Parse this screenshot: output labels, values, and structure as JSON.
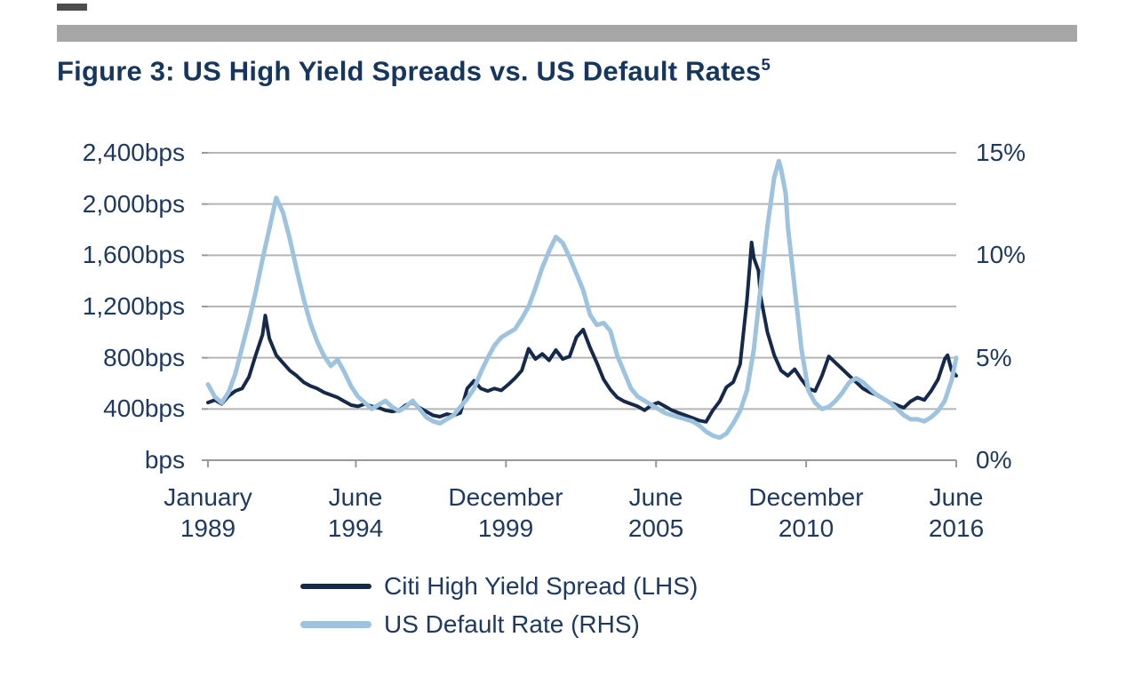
{
  "header": {
    "figure_label": "Figure 3",
    "figure_title_full": "Figure 3: US High Yield Spreads vs. US Default Rates",
    "footnote_marker": "5"
  },
  "legend": {
    "items": [
      {
        "label": "Citi High Yield Spread (LHS)",
        "color": "#15294b"
      },
      {
        "label": "US Default Rate (RHS)",
        "color": "#9dc3de"
      }
    ]
  },
  "chart_data": {
    "type": "line",
    "title": "Figure 3: US High Yield Spreads vs. US Default Rates",
    "title_superscript": "5",
    "grid": "horizontal",
    "legend_position": "bottom",
    "x_domain": [
      1989.0,
      2016.42
    ],
    "x_ticks": [
      {
        "t": 1989.0,
        "line1": "January",
        "line2": "1989"
      },
      {
        "t": 1994.42,
        "line1": "June",
        "line2": "1994"
      },
      {
        "t": 1999.92,
        "line1": "December",
        "line2": "1999"
      },
      {
        "t": 2005.42,
        "line1": "June",
        "line2": "2005"
      },
      {
        "t": 2010.92,
        "line1": "December",
        "line2": "2010"
      },
      {
        "t": 2016.42,
        "line1": "June",
        "line2": "2016"
      }
    ],
    "left_axis": {
      "unit": "bps",
      "min": 0,
      "max": 2400,
      "step": 400,
      "tick_values": [
        2400,
        2000,
        1600,
        1200,
        800,
        400,
        0
      ],
      "tick_labels": [
        "2,400bps",
        "2,000bps",
        "1,600bps",
        "1,200bps",
        "800bps",
        "400bps",
        "bps"
      ]
    },
    "right_axis": {
      "unit": "%",
      "min": 0,
      "max": 15,
      "step": 5,
      "tick_values": [
        15,
        10,
        5,
        0
      ],
      "tick_labels": [
        "15%",
        "10%",
        "5%",
        "0%"
      ]
    },
    "series": [
      {
        "name": "Citi High Yield Spread (LHS)",
        "axis": "left",
        "unit": "bps",
        "color": "#15294b",
        "width": 4,
        "points": [
          [
            1989,
            450
          ],
          [
            1989.25,
            470
          ],
          [
            1989.5,
            440
          ],
          [
            1989.75,
            500
          ],
          [
            1990,
            540
          ],
          [
            1990.25,
            560
          ],
          [
            1990.5,
            650
          ],
          [
            1990.75,
            820
          ],
          [
            1991,
            980
          ],
          [
            1991.1,
            1130
          ],
          [
            1991.25,
            950
          ],
          [
            1991.5,
            820
          ],
          [
            1991.75,
            760
          ],
          [
            1992,
            700
          ],
          [
            1992.25,
            660
          ],
          [
            1992.5,
            610
          ],
          [
            1992.75,
            580
          ],
          [
            1993,
            560
          ],
          [
            1993.25,
            530
          ],
          [
            1993.5,
            510
          ],
          [
            1993.75,
            490
          ],
          [
            1994,
            460
          ],
          [
            1994.25,
            430
          ],
          [
            1994.5,
            420
          ],
          [
            1994.75,
            440
          ],
          [
            1995,
            420
          ],
          [
            1995.25,
            410
          ],
          [
            1995.5,
            390
          ],
          [
            1995.75,
            380
          ],
          [
            1996,
            390
          ],
          [
            1996.25,
            430
          ],
          [
            1996.5,
            450
          ],
          [
            1996.75,
            410
          ],
          [
            1997,
            380
          ],
          [
            1997.25,
            350
          ],
          [
            1997.5,
            340
          ],
          [
            1997.75,
            360
          ],
          [
            1998,
            350
          ],
          [
            1998.25,
            370
          ],
          [
            1998.5,
            560
          ],
          [
            1998.75,
            620
          ],
          [
            1999,
            560
          ],
          [
            1999.25,
            540
          ],
          [
            1999.5,
            560
          ],
          [
            1999.75,
            545
          ],
          [
            2000,
            590
          ],
          [
            2000.25,
            640
          ],
          [
            2000.5,
            700
          ],
          [
            2000.75,
            870
          ],
          [
            2001,
            790
          ],
          [
            2001.25,
            830
          ],
          [
            2001.5,
            780
          ],
          [
            2001.75,
            860
          ],
          [
            2002,
            790
          ],
          [
            2002.25,
            810
          ],
          [
            2002.5,
            960
          ],
          [
            2002.75,
            1020
          ],
          [
            2003,
            880
          ],
          [
            2003.25,
            760
          ],
          [
            2003.5,
            630
          ],
          [
            2003.75,
            550
          ],
          [
            2004,
            490
          ],
          [
            2004.25,
            460
          ],
          [
            2004.5,
            440
          ],
          [
            2004.75,
            420
          ],
          [
            2005,
            390
          ],
          [
            2005.25,
            430
          ],
          [
            2005.5,
            450
          ],
          [
            2005.75,
            420
          ],
          [
            2006,
            390
          ],
          [
            2006.25,
            370
          ],
          [
            2006.5,
            350
          ],
          [
            2006.75,
            330
          ],
          [
            2007,
            310
          ],
          [
            2007.25,
            300
          ],
          [
            2007.5,
            390
          ],
          [
            2007.75,
            460
          ],
          [
            2008,
            570
          ],
          [
            2008.25,
            610
          ],
          [
            2008.5,
            750
          ],
          [
            2008.75,
            1250
          ],
          [
            2008.92,
            1700
          ],
          [
            2009,
            1580
          ],
          [
            2009.17,
            1480
          ],
          [
            2009.25,
            1280
          ],
          [
            2009.5,
            1000
          ],
          [
            2009.75,
            820
          ],
          [
            2010,
            700
          ],
          [
            2010.25,
            660
          ],
          [
            2010.5,
            710
          ],
          [
            2010.75,
            630
          ],
          [
            2011,
            560
          ],
          [
            2011.25,
            540
          ],
          [
            2011.5,
            660
          ],
          [
            2011.75,
            810
          ],
          [
            2012,
            760
          ],
          [
            2012.25,
            710
          ],
          [
            2012.5,
            660
          ],
          [
            2012.75,
            610
          ],
          [
            2013,
            560
          ],
          [
            2013.25,
            530
          ],
          [
            2013.5,
            510
          ],
          [
            2013.75,
            480
          ],
          [
            2014,
            450
          ],
          [
            2014.25,
            430
          ],
          [
            2014.5,
            410
          ],
          [
            2014.75,
            460
          ],
          [
            2015,
            490
          ],
          [
            2015.25,
            470
          ],
          [
            2015.5,
            540
          ],
          [
            2015.75,
            630
          ],
          [
            2016,
            790
          ],
          [
            2016.1,
            820
          ],
          [
            2016.25,
            700
          ],
          [
            2016.42,
            660
          ]
        ]
      },
      {
        "name": "US Default Rate (RHS)",
        "axis": "right",
        "unit": "%",
        "color": "#9dc3de",
        "width": 5,
        "points": [
          [
            1989,
            3.7
          ],
          [
            1989.25,
            3.1
          ],
          [
            1989.5,
            2.8
          ],
          [
            1989.75,
            3.3
          ],
          [
            1990,
            4.2
          ],
          [
            1990.25,
            5.5
          ],
          [
            1990.5,
            6.8
          ],
          [
            1990.75,
            8.2
          ],
          [
            1991,
            9.8
          ],
          [
            1991.25,
            11.3
          ],
          [
            1991.5,
            12.8
          ],
          [
            1991.75,
            12.1
          ],
          [
            1992,
            10.8
          ],
          [
            1992.25,
            9.3
          ],
          [
            1992.5,
            7.9
          ],
          [
            1992.75,
            6.7
          ],
          [
            1993,
            5.8
          ],
          [
            1993.25,
            5.1
          ],
          [
            1993.5,
            4.6
          ],
          [
            1993.75,
            4.9
          ],
          [
            1994,
            4.3
          ],
          [
            1994.25,
            3.6
          ],
          [
            1994.5,
            3.1
          ],
          [
            1994.75,
            2.8
          ],
          [
            1995,
            2.5
          ],
          [
            1995.25,
            2.7
          ],
          [
            1995.5,
            2.9
          ],
          [
            1995.75,
            2.6
          ],
          [
            1996,
            2.4
          ],
          [
            1996.25,
            2.6
          ],
          [
            1996.5,
            2.9
          ],
          [
            1996.75,
            2.5
          ],
          [
            1997,
            2.1
          ],
          [
            1997.25,
            1.9
          ],
          [
            1997.5,
            1.8
          ],
          [
            1997.75,
            2.0
          ],
          [
            1998,
            2.2
          ],
          [
            1998.25,
            2.6
          ],
          [
            1998.5,
            3.0
          ],
          [
            1998.75,
            3.5
          ],
          [
            1999,
            4.3
          ],
          [
            1999.25,
            5.0
          ],
          [
            1999.5,
            5.6
          ],
          [
            1999.75,
            6.0
          ],
          [
            2000,
            6.2
          ],
          [
            2000.25,
            6.4
          ],
          [
            2000.5,
            6.9
          ],
          [
            2000.75,
            7.5
          ],
          [
            2001,
            8.4
          ],
          [
            2001.25,
            9.4
          ],
          [
            2001.5,
            10.2
          ],
          [
            2001.75,
            10.9
          ],
          [
            2002,
            10.6
          ],
          [
            2002.25,
            9.9
          ],
          [
            2002.5,
            9.1
          ],
          [
            2002.75,
            8.3
          ],
          [
            2003,
            7.1
          ],
          [
            2003.25,
            6.6
          ],
          [
            2003.5,
            6.7
          ],
          [
            2003.75,
            6.3
          ],
          [
            2004,
            5.1
          ],
          [
            2004.25,
            4.3
          ],
          [
            2004.5,
            3.5
          ],
          [
            2004.75,
            3.1
          ],
          [
            2005,
            2.9
          ],
          [
            2005.25,
            2.7
          ],
          [
            2005.5,
            2.5
          ],
          [
            2005.75,
            2.3
          ],
          [
            2006,
            2.2
          ],
          [
            2006.25,
            2.1
          ],
          [
            2006.5,
            2.0
          ],
          [
            2006.75,
            1.9
          ],
          [
            2007,
            1.7
          ],
          [
            2007.25,
            1.4
          ],
          [
            2007.5,
            1.2
          ],
          [
            2007.75,
            1.1
          ],
          [
            2008,
            1.3
          ],
          [
            2008.25,
            1.8
          ],
          [
            2008.5,
            2.4
          ],
          [
            2008.75,
            3.4
          ],
          [
            2009,
            5.4
          ],
          [
            2009.25,
            8.4
          ],
          [
            2009.5,
            11.4
          ],
          [
            2009.75,
            13.8
          ],
          [
            2009.92,
            14.6
          ],
          [
            2010,
            14.2
          ],
          [
            2010.17,
            13.0
          ],
          [
            2010.25,
            11.4
          ],
          [
            2010.5,
            8.4
          ],
          [
            2010.75,
            5.4
          ],
          [
            2011,
            3.4
          ],
          [
            2011.25,
            2.8
          ],
          [
            2011.5,
            2.5
          ],
          [
            2011.75,
            2.6
          ],
          [
            2012,
            2.9
          ],
          [
            2012.25,
            3.3
          ],
          [
            2012.5,
            3.8
          ],
          [
            2012.75,
            4.0
          ],
          [
            2013,
            3.8
          ],
          [
            2013.25,
            3.5
          ],
          [
            2013.5,
            3.2
          ],
          [
            2013.75,
            3.0
          ],
          [
            2014,
            2.8
          ],
          [
            2014.25,
            2.5
          ],
          [
            2014.5,
            2.2
          ],
          [
            2014.75,
            2.0
          ],
          [
            2015,
            2.0
          ],
          [
            2015.25,
            1.9
          ],
          [
            2015.5,
            2.1
          ],
          [
            2015.75,
            2.4
          ],
          [
            2016,
            2.9
          ],
          [
            2016.25,
            3.9
          ],
          [
            2016.42,
            5.0
          ]
        ]
      }
    ]
  }
}
